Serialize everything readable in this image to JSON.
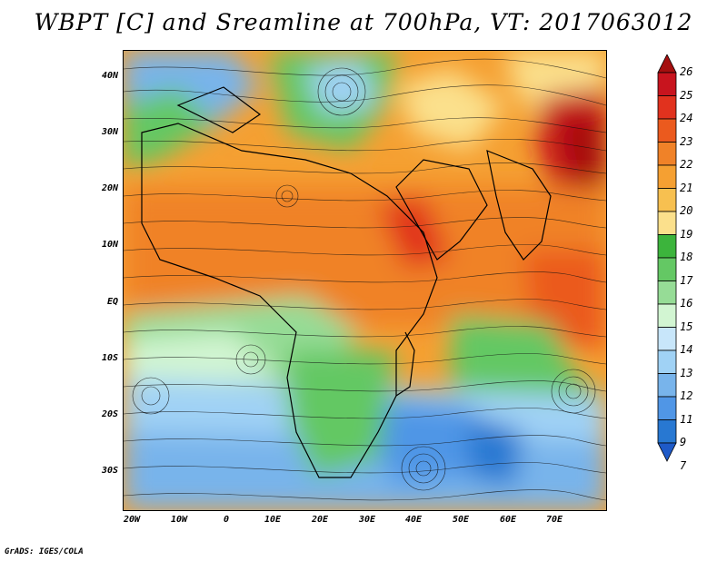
{
  "title": "WBPT [C] and Sreamline at 700hPa, VT: 2017063012",
  "map": {
    "lat_labels": [
      "40N",
      "30N",
      "20N",
      "10N",
      "EQ",
      "10S",
      "20S",
      "30S"
    ],
    "lon_labels": [
      "20W",
      "10W",
      "0",
      "10E",
      "20E",
      "30E",
      "40E",
      "50E",
      "60E",
      "70E"
    ]
  },
  "colorbar": {
    "labels": [
      "26",
      "25",
      "24",
      "23",
      "22",
      "21",
      "20",
      "19",
      "18",
      "17",
      "16",
      "15",
      "14",
      "13",
      "12",
      "11",
      "9",
      "7"
    ],
    "colors": [
      "#a50f0f",
      "#c8141e",
      "#e1321e",
      "#eb5a1e",
      "#f08228",
      "#f5a032",
      "#f7c050",
      "#fbe08c",
      "#3cb43c",
      "#64c864",
      "#96dc96",
      "#d2f5d2",
      "#c8e6fa",
      "#a0d2f5",
      "#78b4eb",
      "#5096e6",
      "#2878d2",
      "#1e5ac8"
    ]
  },
  "credit": "GrADS: IGES/COLA"
}
